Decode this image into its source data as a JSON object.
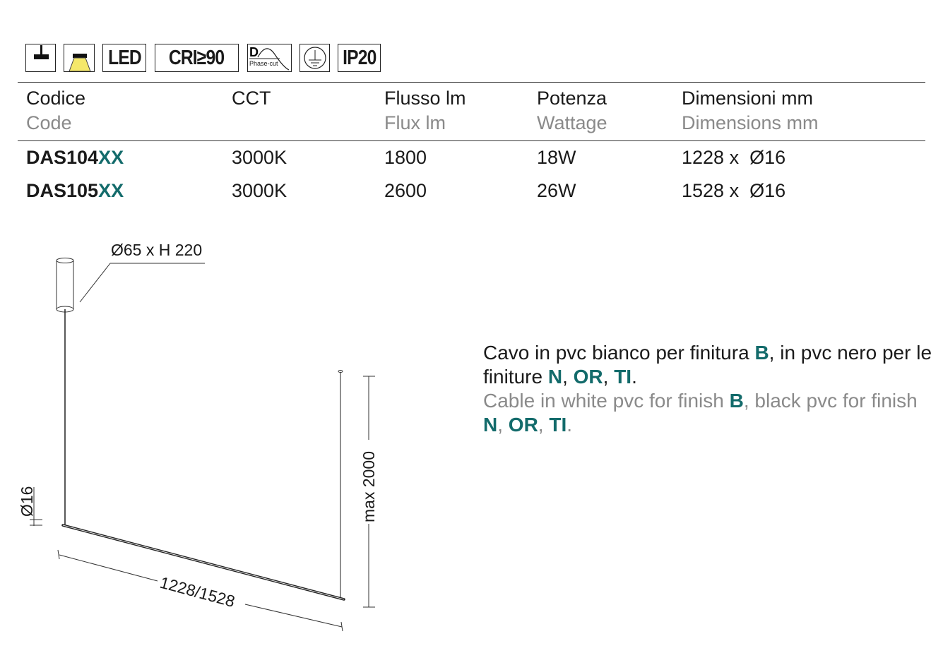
{
  "icons": [
    {
      "name": "pendant-mount-icon"
    },
    {
      "name": "downlight-icon",
      "color": "#f5e86a"
    },
    {
      "name": "led-badge",
      "label": "LED"
    },
    {
      "name": "cri-badge",
      "label": "CRI≥90"
    },
    {
      "name": "phase-cut-dimmable-icon",
      "label": "Phase-cut"
    },
    {
      "name": "earth-ground-icon"
    },
    {
      "name": "ip-rating-badge",
      "label": "IP20"
    }
  ],
  "table": {
    "headers": [
      {
        "it": "Codice",
        "en": "Code"
      },
      {
        "it": "CCT",
        "en": ""
      },
      {
        "it": "Flusso lm",
        "en": "Flux lm"
      },
      {
        "it": "Potenza",
        "en": "Wattage"
      },
      {
        "it": "Dimensioni mm",
        "en": "Dimensions mm"
      }
    ],
    "rows": [
      {
        "code": "DAS104",
        "suffix": "XX",
        "cct": "3000K",
        "flux": "1800",
        "power": "18W",
        "dims": "1228 x  Ø16"
      },
      {
        "code": "DAS105",
        "suffix": "XX",
        "cct": "3000K",
        "flux": "2600",
        "power": "26W",
        "dims": "1528 x  Ø16"
      }
    ]
  },
  "description": {
    "it": {
      "p1": "Cavo in pvc bianco per finitura ",
      "b": "B",
      "p2": ", in pvc nero per le finiture ",
      "n": "N",
      "c1": ", ",
      "or": "OR",
      "c2": ", ",
      "ti": "TI",
      "end": "."
    },
    "en": {
      "p1": "Cable in white pvc for finish ",
      "b": "B",
      "p2": ", black pvc for finish ",
      "n": "N",
      "c1": ", ",
      "or": "OR",
      "c2": ", ",
      "ti": "TI",
      "end": "."
    }
  },
  "drawing": {
    "canopy_dim": "Ø65 x H 220",
    "diameter_dim": "Ø16",
    "length_dim": "1228/1528",
    "height_dim": "max 2000"
  },
  "colors": {
    "accent": "#136b6b",
    "muted": "#8a8a8a"
  }
}
